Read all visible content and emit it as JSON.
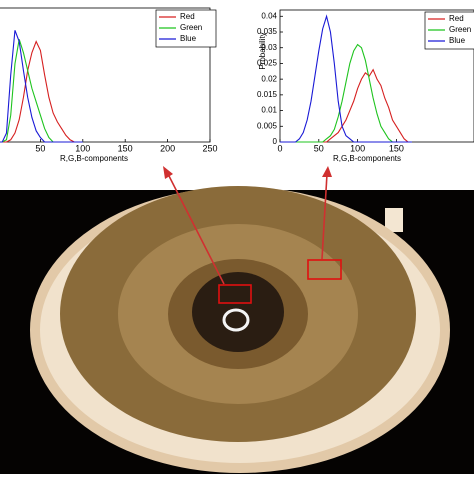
{
  "chart_data": [
    {
      "type": "line",
      "xlabel": "R,G,B-components",
      "xlim": [
        0,
        250
      ],
      "xticks": [
        50,
        100,
        150,
        200,
        250
      ],
      "ylim": [
        0,
        0.06
      ],
      "x": [
        0,
        5,
        10,
        15,
        20,
        25,
        30,
        35,
        40,
        45,
        50,
        55,
        60,
        65,
        70,
        75,
        80,
        85,
        90,
        95,
        100
      ],
      "series": [
        {
          "name": "Red",
          "color": "#d62020",
          "values": [
            0,
            0,
            0,
            0.001,
            0.004,
            0.01,
            0.02,
            0.032,
            0.04,
            0.045,
            0.041,
            0.03,
            0.02,
            0.013,
            0.009,
            0.006,
            0.003,
            0.001,
            0,
            0,
            0
          ]
        },
        {
          "name": "Green",
          "color": "#1fc41f",
          "values": [
            0,
            0,
            0.001,
            0.012,
            0.035,
            0.046,
            0.04,
            0.032,
            0.024,
            0.018,
            0.012,
            0.006,
            0.002,
            0,
            0,
            0,
            0,
            0,
            0,
            0,
            0
          ]
        },
        {
          "name": "Blue",
          "color": "#1a1ad6",
          "values": [
            0,
            0,
            0.004,
            0.03,
            0.05,
            0.045,
            0.032,
            0.02,
            0.011,
            0.005,
            0.002,
            0,
            0,
            0,
            0,
            0,
            0,
            0,
            0,
            0,
            0
          ]
        }
      ]
    },
    {
      "type": "line",
      "xlabel": "R,G,B-components",
      "ylabel": "Probability",
      "xlim": [
        0,
        250
      ],
      "xticks": [
        0,
        50,
        100,
        150
      ],
      "ylim": [
        0,
        0.042
      ],
      "yticks": [
        0,
        0.005,
        0.01,
        0.015,
        0.02,
        0.025,
        0.03,
        0.035,
        0.04
      ],
      "x": [
        0,
        5,
        10,
        15,
        20,
        25,
        30,
        35,
        40,
        45,
        50,
        55,
        60,
        65,
        70,
        75,
        80,
        85,
        90,
        95,
        100,
        105,
        110,
        115,
        120,
        125,
        130,
        135,
        140,
        145,
        150,
        155,
        160,
        165,
        170
      ],
      "series": [
        {
          "name": "Red",
          "color": "#d62020",
          "values": [
            0,
            0,
            0,
            0,
            0,
            0,
            0,
            0,
            0,
            0,
            0,
            0,
            0,
            0.001,
            0.002,
            0.003,
            0.005,
            0.007,
            0.01,
            0.013,
            0.017,
            0.02,
            0.022,
            0.021,
            0.023,
            0.02,
            0.018,
            0.014,
            0.011,
            0.007,
            0.005,
            0.003,
            0.001,
            0,
            0
          ]
        },
        {
          "name": "Green",
          "color": "#1fc41f",
          "values": [
            0,
            0,
            0,
            0,
            0,
            0,
            0,
            0,
            0,
            0,
            0,
            0,
            0.001,
            0.002,
            0.004,
            0.008,
            0.013,
            0.019,
            0.025,
            0.029,
            0.031,
            0.03,
            0.026,
            0.02,
            0.014,
            0.009,
            0.005,
            0.003,
            0.001,
            0,
            0,
            0,
            0,
            0,
            0
          ]
        },
        {
          "name": "Blue",
          "color": "#1a1ad6",
          "values": [
            0,
            0,
            0,
            0,
            0,
            0.001,
            0.003,
            0.007,
            0.013,
            0.021,
            0.029,
            0.036,
            0.04,
            0.035,
            0.025,
            0.013,
            0.005,
            0.002,
            0.001,
            0,
            0,
            0,
            0,
            0,
            0,
            0,
            0,
            0,
            0,
            0,
            0,
            0,
            0,
            0,
            0
          ]
        }
      ]
    }
  ]
}
